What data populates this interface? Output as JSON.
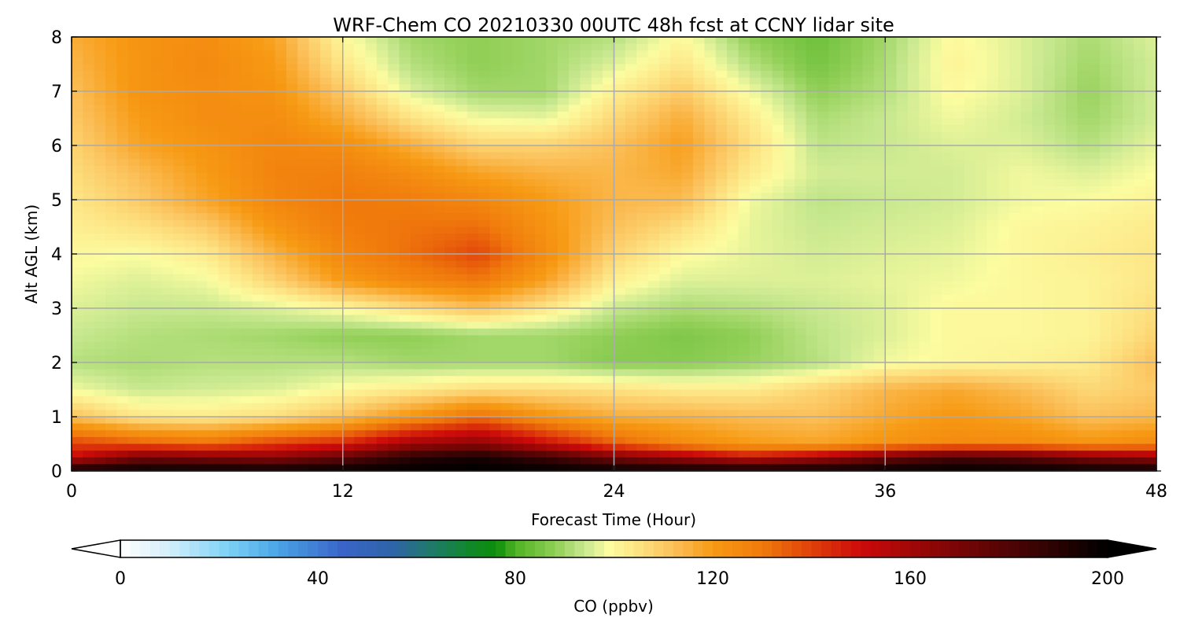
{
  "chart_data": {
    "type": "heatmap",
    "title": "WRF-Chem CO  20210330 00UTC 48h fcst at CCNY lidar site",
    "xlabel": "Forecast Time (Hour)",
    "ylabel": "Alt AGL (km)",
    "xlim": [
      0,
      48
    ],
    "ylim": [
      0,
      8
    ],
    "x_ticks": [
      "0",
      "12",
      "24",
      "36",
      "48"
    ],
    "y_ticks": [
      "0",
      "1",
      "2",
      "3",
      "4",
      "5",
      "6",
      "7",
      "8"
    ],
    "grid": true,
    "x": [
      0,
      3,
      6,
      9,
      12,
      15,
      18,
      21,
      24,
      27,
      30,
      33,
      36,
      39,
      42,
      45,
      48
    ],
    "y": [
      0,
      0.25,
      0.5,
      1,
      1.5,
      2,
      2.5,
      3,
      3.5,
      4,
      4.5,
      5,
      5.5,
      6,
      6.5,
      7,
      7.5,
      8
    ],
    "z": [
      [
        200,
        200,
        200,
        200,
        200,
        200,
        200,
        200,
        200,
        200,
        200,
        200,
        200,
        200,
        200,
        200,
        200
      ],
      [
        150,
        170,
        168,
        165,
        175,
        190,
        195,
        185,
        170,
        160,
        150,
        158,
        172,
        182,
        178,
        168,
        162
      ],
      [
        140,
        135,
        132,
        140,
        145,
        160,
        165,
        150,
        135,
        125,
        120,
        118,
        122,
        125,
        125,
        122,
        125
      ],
      [
        112,
        104,
        103,
        106,
        112,
        122,
        132,
        122,
        116,
        115,
        113,
        112,
        117,
        121,
        118,
        112,
        114
      ],
      [
        98,
        94,
        95,
        96,
        100,
        103,
        106,
        106,
        105,
        103,
        103,
        108,
        114,
        117,
        113,
        107,
        110
      ],
      [
        92,
        91,
        92,
        92,
        92,
        90,
        90,
        90,
        87,
        87,
        89,
        92,
        98,
        100,
        101,
        103,
        112
      ],
      [
        94,
        92,
        91,
        90,
        88,
        88,
        90,
        90,
        88,
        86,
        88,
        93,
        96,
        100,
        100,
        101,
        108
      ],
      [
        96,
        94,
        94,
        96,
        100,
        106,
        112,
        104,
        94,
        91,
        92,
        94,
        96,
        100,
        100,
        101,
        106
      ],
      [
        98,
        96,
        98,
        108,
        120,
        126,
        130,
        118,
        102,
        96,
        96,
        96,
        97,
        98,
        100,
        101,
        104
      ],
      [
        100,
        99,
        103,
        115,
        126,
        132,
        139,
        124,
        108,
        100,
        97,
        95,
        96,
        97,
        100,
        102,
        104
      ],
      [
        102,
        105,
        110,
        122,
        129,
        131,
        132,
        122,
        112,
        106,
        97,
        94,
        95,
        96,
        100,
        101,
        103
      ],
      [
        104,
        110,
        118,
        126,
        130,
        129,
        126,
        120,
        114,
        113,
        98,
        93,
        94,
        95,
        98,
        99,
        101
      ],
      [
        106,
        113,
        120,
        127,
        128,
        124,
        118,
        115,
        114,
        117,
        103,
        95,
        95,
        95,
        98,
        96,
        99
      ],
      [
        108,
        118,
        122,
        126,
        124,
        116,
        108,
        108,
        112,
        119,
        106,
        93,
        94,
        96,
        96,
        92,
        97
      ],
      [
        110,
        120,
        124,
        124,
        116,
        105,
        98,
        97,
        107,
        116,
        103,
        91,
        94,
        98,
        95,
        90,
        95
      ],
      [
        112,
        122,
        124,
        122,
        110,
        96,
        90,
        90,
        102,
        110,
        98,
        88,
        92,
        100,
        96,
        89,
        95
      ],
      [
        114,
        122,
        125,
        120,
        104,
        92,
        88,
        90,
        96,
        104,
        92,
        85,
        91,
        101,
        96,
        90,
        95
      ],
      [
        116,
        122,
        124,
        118,
        100,
        90,
        88,
        90,
        92,
        100,
        88,
        84,
        90,
        100,
        96,
        91,
        96
      ]
    ],
    "colorbar": {
      "label": "CO  (ppbv)",
      "ticks": [
        "0",
        "40",
        "80",
        "120",
        "160",
        "200"
      ],
      "range": [
        0,
        200
      ],
      "extend": "both",
      "colors": [
        {
          "value": 0,
          "color": "#ffffff"
        },
        {
          "value": 10,
          "color": "#d2eefb"
        },
        {
          "value": 22,
          "color": "#7cd0f6"
        },
        {
          "value": 32,
          "color": "#4aa3e6"
        },
        {
          "value": 45,
          "color": "#3a64c8"
        },
        {
          "value": 55,
          "color": "#2e64a8"
        },
        {
          "value": 63,
          "color": "#1f7a6a"
        },
        {
          "value": 72,
          "color": "#0f8a20"
        },
        {
          "value": 76,
          "color": "#0b8c0b"
        },
        {
          "value": 80,
          "color": "#4fb324"
        },
        {
          "value": 88,
          "color": "#8fce55"
        },
        {
          "value": 94,
          "color": "#c8e890"
        },
        {
          "value": 99,
          "color": "#fcfca0"
        },
        {
          "value": 105,
          "color": "#fde282"
        },
        {
          "value": 112,
          "color": "#fbc05a"
        },
        {
          "value": 120,
          "color": "#f79a14"
        },
        {
          "value": 130,
          "color": "#f07a0c"
        },
        {
          "value": 140,
          "color": "#e0400a"
        },
        {
          "value": 150,
          "color": "#cc0a0a"
        },
        {
          "value": 165,
          "color": "#8c0606"
        },
        {
          "value": 180,
          "color": "#500404"
        },
        {
          "value": 200,
          "color": "#000000"
        }
      ]
    }
  }
}
